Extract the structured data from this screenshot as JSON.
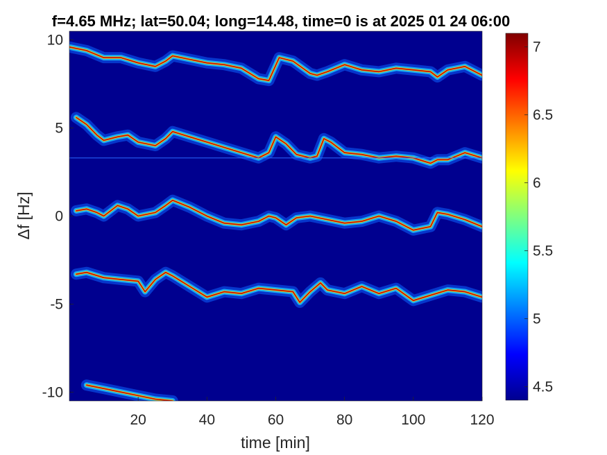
{
  "chart_data": {
    "type": "heatmap",
    "title": "f=4.65 MHz;  lat=50.04; long=14.48, time=0 is at 2025 01 24 06:00",
    "xlabel": "time [min]",
    "ylabel": "Δf [Hz]",
    "xlim": [
      0,
      120
    ],
    "ylim": [
      -10.5,
      10.5
    ],
    "x_ticks": [
      20,
      40,
      60,
      80,
      100,
      120
    ],
    "x_tick_labels": [
      "20",
      "40",
      "60",
      "80",
      "100",
      "120"
    ],
    "y_ticks": [
      10,
      5,
      0,
      -5,
      -10
    ],
    "y_tick_labels": [
      "10",
      "5",
      "0",
      "-5",
      "-10"
    ],
    "colorbar": {
      "colormap": "jet",
      "clim": [
        4.4,
        7.1
      ],
      "ticks": [
        7,
        6.5,
        6,
        5.5,
        5,
        4.5
      ],
      "tick_labels": [
        "7",
        "6.5",
        "6",
        "5.5",
        "5",
        "4.5"
      ]
    },
    "background_color": "#00008f",
    "reference_line": {
      "y": 3.3,
      "color": "#2a6bff"
    },
    "series": [
      {
        "x": [
          0,
          5,
          10,
          15,
          20,
          25,
          28,
          30,
          35,
          40,
          45,
          50,
          55,
          58,
          61,
          65,
          70,
          72,
          75,
          80,
          85,
          90,
          95,
          100,
          105,
          107,
          110,
          115,
          120
        ],
        "y": [
          9.6,
          9.4,
          9.0,
          9.0,
          8.7,
          8.5,
          8.8,
          9.1,
          8.9,
          8.7,
          8.6,
          8.4,
          7.8,
          7.7,
          9.0,
          8.8,
          8.1,
          8.0,
          8.2,
          8.6,
          8.3,
          8.2,
          8.4,
          8.3,
          8.2,
          7.9,
          8.3,
          8.5,
          8.0
        ]
      },
      {
        "x": [
          2,
          5,
          8,
          10,
          14,
          17,
          20,
          25,
          28,
          30,
          35,
          40,
          45,
          50,
          55,
          58,
          60,
          63,
          66,
          70,
          72,
          74,
          76,
          80,
          85,
          90,
          95,
          100,
          105,
          107,
          110,
          115,
          120
        ],
        "y": [
          5.6,
          5.2,
          4.6,
          4.3,
          4.5,
          4.6,
          4.2,
          4.0,
          4.4,
          4.8,
          4.5,
          4.2,
          3.9,
          3.6,
          3.3,
          3.6,
          4.5,
          4.1,
          3.5,
          3.3,
          3.4,
          4.4,
          4.2,
          3.6,
          3.5,
          3.3,
          3.4,
          3.3,
          3.0,
          3.2,
          3.2,
          3.6,
          3.3
        ]
      },
      {
        "x": [
          2,
          5,
          8,
          10,
          14,
          17,
          20,
          25,
          28,
          30,
          35,
          40,
          45,
          50,
          55,
          58,
          60,
          63,
          66,
          70,
          75,
          80,
          85,
          90,
          95,
          100,
          105,
          107,
          110,
          115,
          120
        ],
        "y": [
          0.3,
          0.4,
          0.2,
          0.0,
          0.6,
          0.4,
          0.0,
          0.2,
          0.6,
          0.9,
          0.5,
          0.0,
          -0.4,
          -0.5,
          -0.3,
          0.0,
          -0.1,
          -0.5,
          -0.1,
          0.0,
          -0.2,
          -0.4,
          -0.3,
          0.0,
          -0.3,
          -0.8,
          -0.6,
          0.2,
          0.1,
          -0.2,
          -0.6
        ]
      },
      {
        "x": [
          2,
          5,
          10,
          15,
          20,
          22,
          25,
          28,
          30,
          35,
          40,
          45,
          50,
          55,
          60,
          65,
          67,
          70,
          73,
          75,
          80,
          85,
          90,
          95,
          100,
          105,
          110,
          115,
          120
        ],
        "y": [
          -3.3,
          -3.2,
          -3.5,
          -3.6,
          -3.7,
          -4.3,
          -3.6,
          -3.2,
          -3.4,
          -4.0,
          -4.6,
          -4.3,
          -4.4,
          -4.1,
          -4.2,
          -4.3,
          -4.9,
          -4.3,
          -3.8,
          -4.2,
          -4.4,
          -4.0,
          -4.4,
          -4.1,
          -4.8,
          -4.5,
          -4.2,
          -4.3,
          -4.6
        ]
      },
      {
        "x": [
          5,
          10,
          15,
          20,
          25,
          30
        ],
        "y": [
          -9.6,
          -9.8,
          -10.0,
          -10.2,
          -10.4,
          -10.5
        ]
      }
    ]
  }
}
